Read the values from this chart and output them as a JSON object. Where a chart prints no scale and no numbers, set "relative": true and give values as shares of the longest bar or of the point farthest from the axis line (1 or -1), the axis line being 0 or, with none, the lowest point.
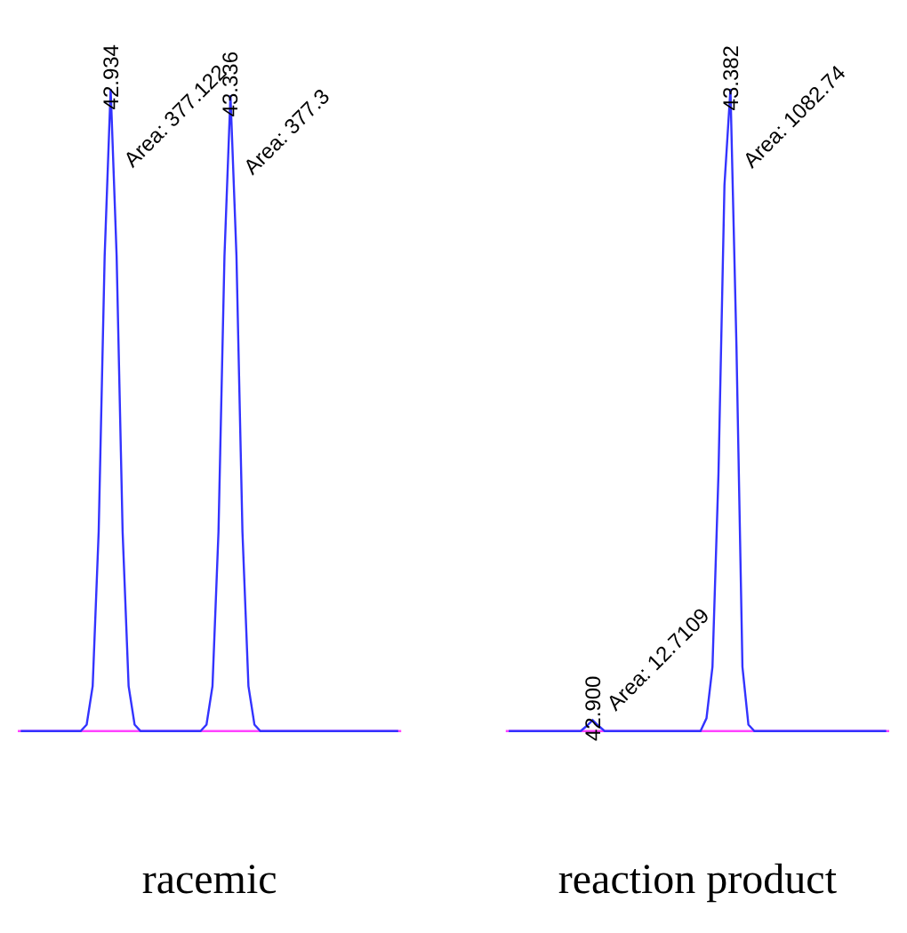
{
  "chart_data": [
    {
      "type": "line",
      "relative": true,
      "xlabel": "racemic",
      "categories": [
        null,
        null,
        null,
        null,
        null,
        null,
        null,
        null,
        null,
        null,
        null,
        null,
        null,
        null,
        null,
        null,
        null,
        null,
        null,
        null,
        null,
        null,
        null,
        null,
        null,
        null,
        null,
        null,
        null,
        null,
        null,
        null,
        null,
        null,
        null,
        null,
        null,
        null,
        null,
        null,
        null,
        null,
        null,
        null,
        null,
        null,
        null,
        null,
        null,
        null,
        null,
        null,
        null,
        null,
        null,
        null,
        null,
        null,
        null,
        null,
        null,
        null,
        null,
        null
      ],
      "series": [
        {
          "color": "#3333ff",
          "values": [
            0,
            0,
            0,
            0,
            0,
            0,
            0,
            0,
            0,
            0,
            0,
            0.01,
            0.07,
            0.31,
            0.74,
            1,
            0.74,
            0.31,
            0.07,
            0.01,
            0,
            0,
            0,
            0,
            0,
            0,
            0,
            0,
            0,
            0,
            0,
            0.01,
            0.07,
            0.31,
            0.74,
            0.99,
            0.74,
            0.31,
            0.07,
            0.01,
            0,
            0,
            0,
            0,
            0,
            0,
            0,
            0,
            0,
            0,
            0,
            0,
            0,
            0,
            0,
            0,
            0,
            0,
            0,
            0,
            0,
            0,
            0,
            0
          ]
        }
      ],
      "ref_lines": [
        {
          "axis": "y",
          "value": 0,
          "color": "#ff44ff"
        }
      ],
      "annotations": [
        "42.934",
        "Area: 377.122",
        "43.336",
        "Area: 377.3"
      ]
    },
    {
      "type": "line",
      "relative": true,
      "xlabel": "reaction product",
      "categories": [
        null,
        null,
        null,
        null,
        null,
        null,
        null,
        null,
        null,
        null,
        null,
        null,
        null,
        null,
        null,
        null,
        null,
        null,
        null,
        null,
        null,
        null,
        null,
        null,
        null,
        null,
        null,
        null,
        null,
        null,
        null,
        null,
        null,
        null,
        null,
        null,
        null,
        null,
        null,
        null,
        null,
        null,
        null,
        null,
        null,
        null,
        null,
        null,
        null,
        null,
        null,
        null,
        null,
        null,
        null,
        null,
        null,
        null,
        null,
        null,
        null,
        null,
        null,
        null
      ],
      "series": [
        {
          "color": "#3333ff",
          "values": [
            0,
            0,
            0,
            0,
            0,
            0,
            0,
            0,
            0,
            0,
            0,
            0,
            0,
            0.008,
            0.017,
            0.008,
            0,
            0,
            0,
            0,
            0,
            0,
            0,
            0,
            0,
            0,
            0,
            0,
            0,
            0,
            0,
            0,
            0,
            0.02,
            0.1,
            0.4,
            0.85,
            1,
            0.6,
            0.1,
            0.01,
            0,
            0,
            0,
            0,
            0,
            0,
            0,
            0,
            0,
            0,
            0,
            0,
            0,
            0,
            0,
            0,
            0,
            0,
            0,
            0,
            0,
            0,
            0
          ]
        }
      ],
      "ref_lines": [
        {
          "axis": "y",
          "value": 0,
          "color": "#ff44ff"
        }
      ],
      "annotations": [
        "42.900",
        "Area: 12.7109",
        "43.382",
        "Area: 1082.74"
      ]
    }
  ]
}
